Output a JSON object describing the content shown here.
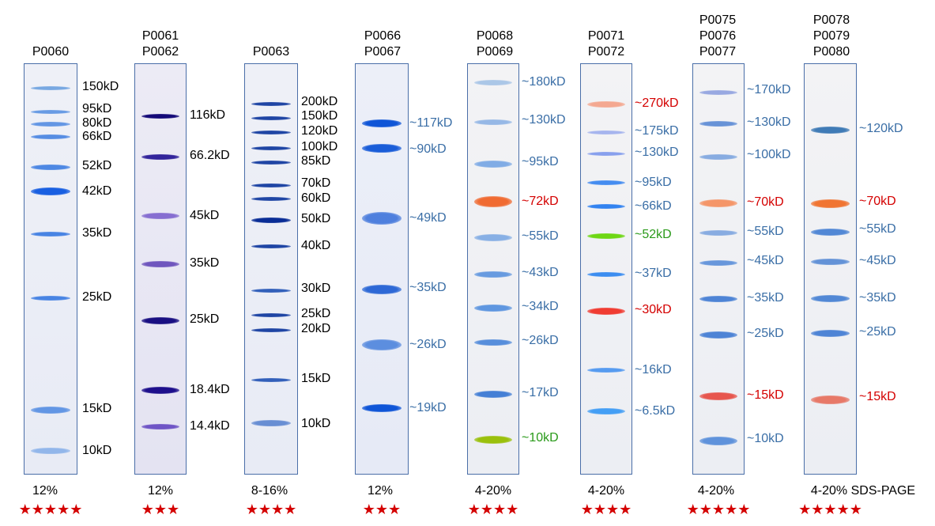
{
  "colors": {
    "black": "#000000",
    "blue_label": "#3a6ea6",
    "red_label": "#d40000",
    "green_label": "#2a9a1a",
    "star": "#d40000",
    "lane_border": "#4a6ea8"
  },
  "ladders": [
    {
      "id": "p0060",
      "products": [
        "P0060"
      ],
      "gel": "12%",
      "stars": "★★★★★",
      "bands": [
        {
          "label": "150kD",
          "color": "black"
        },
        {
          "label": "95kD",
          "color": "black"
        },
        {
          "label": "80kD",
          "color": "black"
        },
        {
          "label": "66kD",
          "color": "black"
        },
        {
          "label": "52kD",
          "color": "black"
        },
        {
          "label": "42kD",
          "color": "black"
        },
        {
          "label": "35kD",
          "color": "black"
        },
        {
          "label": "25kD",
          "color": "black"
        },
        {
          "label": "15kD",
          "color": "black"
        },
        {
          "label": "10kD",
          "color": "black"
        }
      ]
    },
    {
      "id": "p0061",
      "products": [
        "P0061",
        "P0062"
      ],
      "gel": "12%",
      "stars": "★★★",
      "bands": [
        {
          "label": "116kD",
          "color": "black"
        },
        {
          "label": "66.2kD",
          "color": "black"
        },
        {
          "label": "45kD",
          "color": "black"
        },
        {
          "label": "35kD",
          "color": "black"
        },
        {
          "label": "25kD",
          "color": "black"
        },
        {
          "label": "18.4kD",
          "color": "black"
        },
        {
          "label": "14.4kD",
          "color": "black"
        }
      ]
    },
    {
      "id": "p0063",
      "products": [
        "P0063"
      ],
      "gel": "8-16%",
      "stars": "★★★★",
      "bands": [
        {
          "label": "200kD",
          "color": "black"
        },
        {
          "label": "150kD",
          "color": "black"
        },
        {
          "label": "120kD",
          "color": "black"
        },
        {
          "label": "100kD",
          "color": "black"
        },
        {
          "label": "85kD",
          "color": "black"
        },
        {
          "label": "70kD",
          "color": "black"
        },
        {
          "label": "60kD",
          "color": "black"
        },
        {
          "label": "50kD",
          "color": "black"
        },
        {
          "label": "40kD",
          "color": "black"
        },
        {
          "label": "30kD",
          "color": "black"
        },
        {
          "label": "25kD",
          "color": "black"
        },
        {
          "label": "20kD",
          "color": "black"
        },
        {
          "label": "15kD",
          "color": "black"
        },
        {
          "label": "10kD",
          "color": "black"
        }
      ]
    },
    {
      "id": "p0066",
      "products": [
        "P0066",
        "P0067"
      ],
      "gel": "12%",
      "stars": "★★★",
      "bands": [
        {
          "label": "~117kD",
          "color": "blue"
        },
        {
          "label": "~90kD",
          "color": "blue"
        },
        {
          "label": "~49kD",
          "color": "blue"
        },
        {
          "label": "~35kD",
          "color": "blue"
        },
        {
          "label": "~26kD",
          "color": "blue"
        },
        {
          "label": "~19kD",
          "color": "blue"
        }
      ]
    },
    {
      "id": "p0068",
      "products": [
        "P0068",
        "P0069"
      ],
      "gel": "4-20%",
      "stars": "★★★★",
      "bands": [
        {
          "label": "~180kD",
          "color": "blue"
        },
        {
          "label": "~130kD",
          "color": "blue"
        },
        {
          "label": "~95kD",
          "color": "blue"
        },
        {
          "label": "~72kD",
          "color": "red"
        },
        {
          "label": "~55kD",
          "color": "blue"
        },
        {
          "label": "~43kD",
          "color": "blue"
        },
        {
          "label": "~34kD",
          "color": "blue"
        },
        {
          "label": "~26kD",
          "color": "blue"
        },
        {
          "label": "~17kD",
          "color": "blue"
        },
        {
          "label": "~10kD",
          "color": "green"
        }
      ]
    },
    {
      "id": "p0071",
      "products": [
        "P0071",
        "P0072"
      ],
      "gel": "4-20%",
      "stars": "★★★★",
      "bands": [
        {
          "label": "~270kD",
          "color": "red"
        },
        {
          "label": "~175kD",
          "color": "blue"
        },
        {
          "label": "~130kD",
          "color": "blue"
        },
        {
          "label": "~95kD",
          "color": "blue"
        },
        {
          "label": "~66kD",
          "color": "blue"
        },
        {
          "label": "~52kD",
          "color": "green"
        },
        {
          "label": "~37kD",
          "color": "blue"
        },
        {
          "label": "~30kD",
          "color": "red"
        },
        {
          "label": "~16kD",
          "color": "blue"
        },
        {
          "label": "~6.5kD",
          "color": "blue"
        }
      ]
    },
    {
      "id": "p0075",
      "products": [
        "P0075",
        "P0076",
        "P0077"
      ],
      "gel": "4-20%",
      "stars": "★★★★★",
      "bands": [
        {
          "label": "~170kD",
          "color": "blue"
        },
        {
          "label": "~130kD",
          "color": "blue"
        },
        {
          "label": "~100kD",
          "color": "blue"
        },
        {
          "label": "~70kD",
          "color": "red"
        },
        {
          "label": "~55kD",
          "color": "blue"
        },
        {
          "label": "~45kD",
          "color": "blue"
        },
        {
          "label": "~35kD",
          "color": "blue"
        },
        {
          "label": "~25kD",
          "color": "blue"
        },
        {
          "label": "~15kD",
          "color": "red"
        },
        {
          "label": "~10kD",
          "color": "blue"
        }
      ]
    },
    {
      "id": "p0078",
      "products": [
        "P0078",
        "P0079",
        "P0080"
      ],
      "gel": "4-20% SDS-PAGE",
      "stars": "★★★★★",
      "bands": [
        {
          "label": "~120kD",
          "color": "blue"
        },
        {
          "label": "~70kD",
          "color": "red"
        },
        {
          "label": "~55kD",
          "color": "blue"
        },
        {
          "label": "~45kD",
          "color": "blue"
        },
        {
          "label": "~35kD",
          "color": "blue"
        },
        {
          "label": "~25kD",
          "color": "blue"
        },
        {
          "label": "~15kD",
          "color": "red"
        }
      ]
    }
  ]
}
